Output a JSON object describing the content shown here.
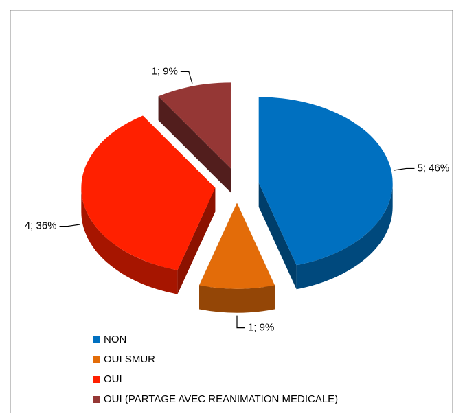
{
  "chart_data": {
    "type": "pie",
    "categories": [
      "NON",
      "OUI SMUR",
      "OUI",
      "OUI (PARTAGE AVEC REANIMATION MEDICALE)"
    ],
    "values": [
      5,
      1,
      4,
      1
    ],
    "value_labels": [
      "5; 46%",
      "1; 9%",
      "4; 36%",
      "1; 9%"
    ],
    "colors": [
      "#0070c0",
      "#e36c09",
      "#ff2000",
      "#953735"
    ],
    "legend": "bottom"
  }
}
